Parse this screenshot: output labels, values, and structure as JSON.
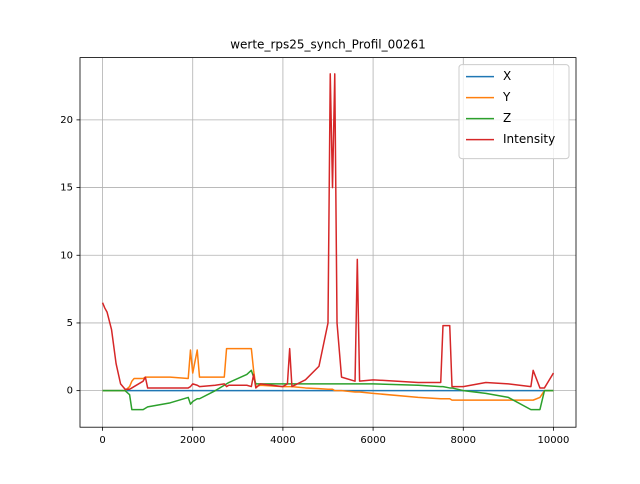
{
  "chart_data": {
    "type": "line",
    "title": "werte_rps25_synch_Profil_00261",
    "x": [
      0,
      50,
      100,
      200,
      300,
      400,
      500,
      600,
      650,
      700,
      900,
      950,
      1000,
      1500,
      1900,
      1950,
      2000,
      2100,
      2150,
      2500,
      2700,
      2750,
      2800,
      3200,
      3300,
      3350,
      3400,
      3500,
      4000,
      4100,
      4150,
      4200,
      4500,
      4800,
      5000,
      5050,
      5100,
      5150,
      5200,
      5300,
      5600,
      5650,
      5700,
      6000,
      7000,
      7500,
      7550,
      7700,
      7750,
      8000,
      8500,
      9000,
      9500,
      9550,
      9700,
      9800,
      10000
    ],
    "series": [
      {
        "name": "X",
        "color": "#1f77b4",
        "values": [
          0,
          0,
          0,
          0,
          0,
          0,
          0,
          0,
          0,
          0,
          0,
          0,
          0,
          0,
          0,
          0,
          0,
          0,
          0,
          0,
          0,
          0,
          0,
          0,
          0,
          0,
          0,
          0,
          0,
          0,
          0,
          0,
          0,
          0,
          0,
          0,
          0,
          0,
          0,
          0,
          0,
          0,
          0,
          0,
          0,
          0,
          0,
          0,
          0,
          0,
          0,
          0,
          0,
          0,
          0,
          0,
          0
        ]
      },
      {
        "name": "Y",
        "color": "#ff7f0e",
        "values": [
          0,
          0,
          0,
          0,
          0,
          0,
          0,
          0.3,
          0.7,
          0.9,
          0.9,
          1,
          1,
          1,
          0.9,
          3,
          1.3,
          3,
          1,
          1,
          1,
          3.1,
          3.1,
          3.1,
          3.1,
          1.5,
          0.3,
          0.4,
          0.3,
          0.3,
          0.3,
          0.3,
          0.2,
          0.15,
          0.1,
          0.1,
          0.1,
          0,
          0,
          0,
          -0.1,
          -0.1,
          -0.1,
          -0.2,
          -0.5,
          -0.6,
          -0.6,
          -0.6,
          -0.7,
          -0.7,
          -0.7,
          -0.7,
          -0.7,
          -0.7,
          -0.5,
          0,
          0
        ]
      },
      {
        "name": "Z",
        "color": "#2ca02c",
        "values": [
          0,
          0,
          0,
          0,
          0,
          0,
          0,
          -0.3,
          -1.4,
          -1.4,
          -1.4,
          -1.3,
          -1.2,
          -0.9,
          -0.5,
          -1,
          -0.8,
          -0.6,
          -0.6,
          0,
          0.4,
          0.5,
          0.6,
          1.2,
          1.5,
          1,
          0.5,
          0.5,
          0.5,
          0.5,
          0.5,
          0.5,
          0.5,
          0.5,
          0.5,
          0.5,
          0.5,
          0.5,
          0.5,
          0.5,
          0.5,
          0.5,
          0.5,
          0.5,
          0.4,
          0.3,
          0.3,
          0.2,
          0.2,
          0,
          -0.2,
          -0.5,
          -1.4,
          -1.4,
          -1.4,
          0,
          0
        ]
      },
      {
        "name": "Intensity",
        "color": "#d62728",
        "values": [
          6.5,
          6.1,
          5.8,
          4.5,
          2,
          0.5,
          0.1,
          0.1,
          0.2,
          0.3,
          0.7,
          1,
          0.2,
          0.2,
          0.2,
          0.3,
          0.5,
          0.4,
          0.3,
          0.4,
          0.5,
          0.3,
          0.4,
          0.4,
          0.3,
          1.2,
          0.2,
          0.5,
          0.3,
          0.5,
          3.1,
          0.3,
          0.8,
          1.8,
          5,
          23.4,
          15,
          23.4,
          5,
          1,
          0.7,
          9.7,
          0.7,
          0.8,
          0.6,
          0.6,
          4.8,
          4.8,
          0.3,
          0.3,
          0.6,
          0.5,
          0.3,
          1.5,
          0.2,
          0.2,
          1.3
        ]
      }
    ],
    "xlim": [
      -500,
      10500
    ],
    "ylim": [
      -2.7,
      24.6
    ],
    "xticks": [
      0,
      2000,
      4000,
      6000,
      8000,
      10000
    ],
    "yticks": [
      0,
      5,
      10,
      15,
      20
    ],
    "grid": true,
    "legend": "upper right"
  }
}
